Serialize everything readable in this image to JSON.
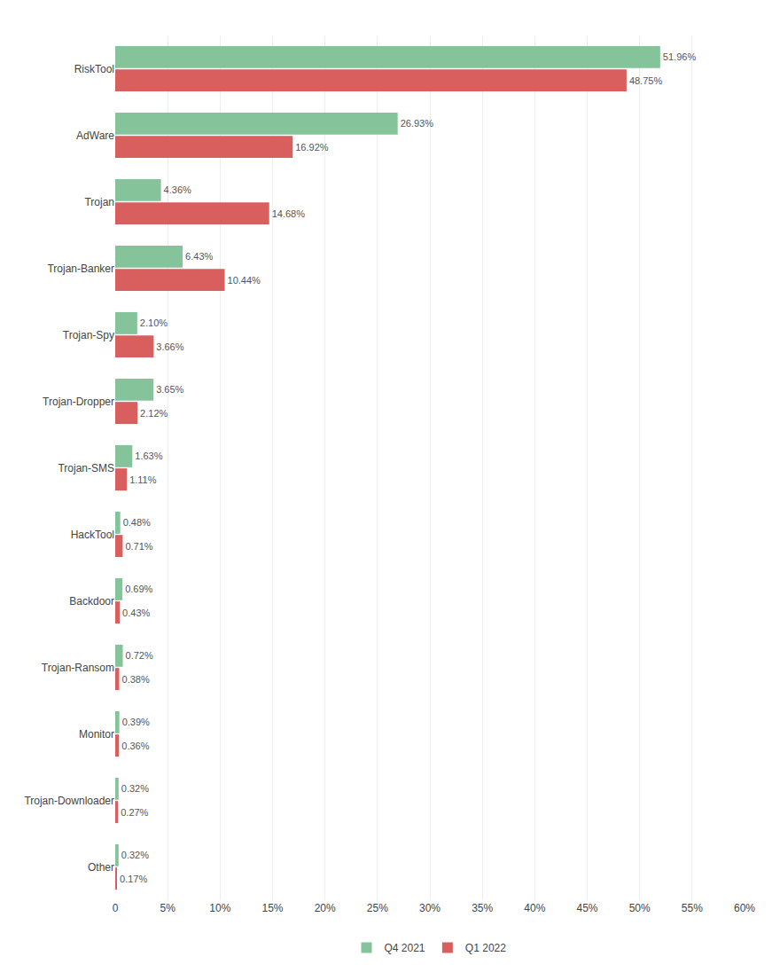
{
  "chart_data": {
    "type": "bar",
    "orientation": "horizontal",
    "categories": [
      "RiskTool",
      "AdWare",
      "Trojan",
      "Trojan-Banker",
      "Trojan-Spy",
      "Trojan-Dropper",
      "Trojan-SMS",
      "HackTool",
      "Backdoor",
      "Trojan-Ransom",
      "Monitor",
      "Trojan-Downloader",
      "Other"
    ],
    "series": [
      {
        "name": "Q4 2021",
        "color": "#85C49A",
        "values": [
          51.96,
          26.93,
          4.36,
          6.43,
          2.1,
          3.65,
          1.63,
          0.48,
          0.69,
          0.72,
          0.39,
          0.32,
          0.32
        ],
        "value_labels": [
          "51.96%",
          "26.93%",
          "4.36%",
          "6.43%",
          "2.10%",
          "3.65%",
          "1.63%",
          "0.48%",
          "0.69%",
          "0.72%",
          "0.39%",
          "0.32%",
          "0.32%"
        ]
      },
      {
        "name": "Q1 2022",
        "color": "#D95F5F",
        "values": [
          48.75,
          16.92,
          14.68,
          10.44,
          3.66,
          2.12,
          1.11,
          0.71,
          0.43,
          0.38,
          0.36,
          0.27,
          0.17
        ],
        "value_labels": [
          "48.75%",
          "16.92%",
          "14.68%",
          "10.44%",
          "3.66%",
          "2.12%",
          "1.11%",
          "0.71%",
          "0.43%",
          "0.38%",
          "0.36%",
          "0.27%",
          "0.17%"
        ]
      }
    ],
    "xlim": [
      0,
      60
    ],
    "xticks": [
      0,
      {
        "value": 5,
        "label": "5%"
      },
      {
        "value": 10,
        "label": "10%"
      },
      {
        "value": 15,
        "label": "15%"
      },
      {
        "value": 20,
        "label": "20%"
      },
      {
        "value": 25,
        "label": "25%"
      },
      {
        "value": 30,
        "label": "30%"
      },
      {
        "value": 35,
        "label": "35%"
      },
      {
        "value": 40,
        "label": "40%"
      },
      {
        "value": 45,
        "label": "45%"
      },
      {
        "value": 50,
        "label": "50%"
      },
      {
        "value": 55,
        "label": "55%"
      },
      {
        "value": 60,
        "label": "60%"
      }
    ],
    "grid": true,
    "legend": "bottom",
    "data_labels": true
  }
}
